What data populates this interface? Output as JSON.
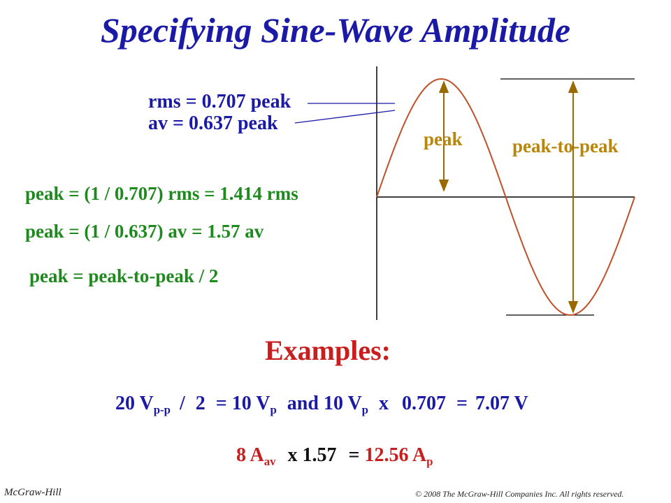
{
  "title": "Specifying Sine-Wave Amplitude",
  "labels": {
    "rms": "rms = 0.707 peak",
    "av": "av = 0.637 peak",
    "peak": "peak",
    "peak_to_peak": "peak-to-peak"
  },
  "formulas": [
    "peak = (1 / 0.707) rms = 1.414 rms",
    "peak = (1 / 0.637) av = 1.57 av",
    "peak = peak-to-peak / 2"
  ],
  "examples": {
    "heading": "Examples:",
    "ex1": {
      "a": "20 V",
      "a_sub": "p-p",
      "div": "/",
      "two": "2",
      "eq1": "=",
      "b": "10 V",
      "b_sub": "p",
      "and": "and",
      "c": "10 V",
      "c_sub": "p",
      "x": "x",
      "factor": "0.707",
      "eq2": "=",
      "result": "7.07 V"
    },
    "ex2": {
      "a": "8 A",
      "a_sub": "av",
      "op": "x 1.57",
      "eq": "=",
      "b": "12.56 A",
      "b_sub": "p"
    }
  },
  "footer": {
    "left": "McGraw-Hill",
    "right": "© 2008 The McGraw-Hill Companies Inc. All rights reserved."
  },
  "colors": {
    "title": "#1a1aa6",
    "sine": "#c0502a",
    "arrows": "#9a6a00",
    "formulas": "#1e8a1e",
    "examples_heading": "#c81e1e"
  }
}
